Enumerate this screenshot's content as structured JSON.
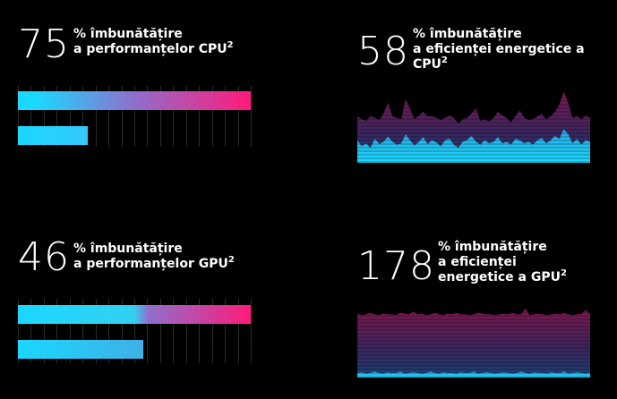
{
  "colors": {
    "background": "#000000",
    "cyan": "#1ad8ff",
    "magenta": "#ff1a7a",
    "purple": "#8f6fcc"
  },
  "cpu_perf": {
    "value": "75",
    "line1": "% îmbunătățire",
    "line2": "a performanțelor CPU",
    "sup": "2",
    "baseline_pct": 30,
    "improved_pct": 100
  },
  "cpu_eff": {
    "value": "58",
    "line1": "% îmbunătățire",
    "line2": "a eficienței energetice a",
    "line3": "CPU",
    "sup": "2"
  },
  "gpu_perf": {
    "value": "46",
    "line1": "% îmbunătățire",
    "line2": "a performanțelor GPU",
    "sup": "2",
    "baseline_pct": 54,
    "improved_pct": 100
  },
  "gpu_eff": {
    "value": "178",
    "line1": "% îmbunătățire",
    "line2": "a eficienței",
    "line3": "energetice a GPU",
    "sup": "2"
  },
  "chart_data": [
    {
      "type": "area",
      "series": [
        {
          "values": [
            0.62,
            0.58,
            0.56,
            0.62,
            0.6,
            0.57,
            0.66,
            0.8,
            0.62,
            0.6,
            0.58,
            0.85,
            0.72,
            0.58,
            0.63,
            0.68,
            0.62,
            0.62,
            0.6,
            0.57,
            0.6,
            0.63,
            0.6,
            0.52,
            0.58,
            0.6,
            0.66,
            0.72,
            0.56,
            0.58,
            0.55,
            0.6,
            0.68,
            0.63,
            0.6,
            0.54,
            0.62,
            0.7,
            0.6,
            0.57,
            0.58,
            0.62,
            0.65,
            0.58,
            0.62,
            0.68,
            0.78,
            0.95,
            0.8,
            0.6,
            0.62,
            0.58,
            0.63,
            0.6
          ]
        },
        {
          "values": [
            0.3,
            0.22,
            0.26,
            0.2,
            0.32,
            0.25,
            0.28,
            0.35,
            0.28,
            0.24,
            0.26,
            0.38,
            0.3,
            0.23,
            0.28,
            0.34,
            0.25,
            0.3,
            0.27,
            0.22,
            0.3,
            0.32,
            0.24,
            0.2,
            0.28,
            0.3,
            0.36,
            0.28,
            0.24,
            0.3,
            0.26,
            0.28,
            0.34,
            0.26,
            0.28,
            0.24,
            0.32,
            0.3,
            0.26,
            0.28,
            0.24,
            0.3,
            0.33,
            0.26,
            0.3,
            0.36,
            0.32,
            0.45,
            0.38,
            0.26,
            0.32,
            0.24,
            0.3,
            0.28
          ]
        }
      ]
    },
    {
      "type": "area",
      "series": [
        {
          "values": [
            0.85,
            0.83,
            0.84,
            0.86,
            0.84,
            0.83,
            0.85,
            0.84,
            0.84,
            0.83,
            0.86,
            0.85,
            0.84,
            0.88,
            0.84,
            0.85,
            0.83,
            0.84,
            0.86,
            0.84,
            0.83,
            0.85,
            0.84,
            0.86,
            0.84,
            0.84,
            0.83,
            0.84,
            0.86,
            0.85,
            0.84,
            0.84,
            0.83,
            0.84,
            0.85,
            0.84,
            0.86,
            0.84,
            0.84,
            0.92,
            0.83,
            0.84,
            0.85,
            0.84,
            0.83,
            0.84,
            0.85,
            0.84,
            0.86,
            0.84,
            0.83,
            0.84,
            0.85,
            0.9,
            0.84
          ]
        },
        {
          "values": [
            0.06,
            0.07,
            0.05,
            0.06,
            0.08,
            0.06,
            0.05,
            0.07,
            0.06,
            0.06,
            0.08,
            0.05,
            0.06,
            0.07,
            0.06,
            0.05,
            0.06,
            0.08,
            0.06,
            0.05,
            0.07,
            0.06,
            0.06,
            0.05,
            0.07,
            0.06,
            0.06,
            0.08,
            0.05,
            0.06,
            0.07,
            0.06,
            0.05,
            0.06,
            0.07,
            0.06,
            0.05,
            0.06,
            0.08,
            0.06,
            0.05,
            0.07,
            0.06,
            0.06,
            0.05,
            0.07,
            0.06,
            0.06,
            0.08,
            0.05,
            0.06,
            0.07,
            0.06,
            0.05,
            0.06
          ]
        }
      ]
    }
  ]
}
